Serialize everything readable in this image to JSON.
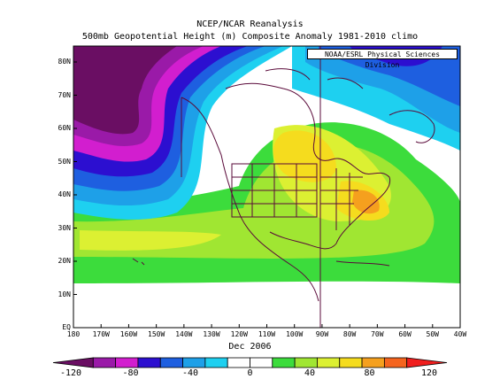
{
  "title": "NCEP/NCAR Reanalysis",
  "subtitle": "500mb Geopotential Height (m) Composite Anomaly 1981-2010 climo",
  "credit": "NOAA/ESRL Physical Sciences Division",
  "date_label": "Dec 2006",
  "x_ticks": [
    "180",
    "170W",
    "160W",
    "150W",
    "140W",
    "130W",
    "120W",
    "110W",
    "100W",
    "90W",
    "80W",
    "70W",
    "60W",
    "50W",
    "40W"
  ],
  "y_ticks": [
    "EQ",
    "10N",
    "20N",
    "30N",
    "40N",
    "50N",
    "60N",
    "70N",
    "80N"
  ],
  "colorbar": {
    "labels": [
      "-120",
      "-80",
      "-40",
      "0",
      "40",
      "80",
      "120"
    ],
    "colors": [
      "#6a0e63",
      "#9a1aa8",
      "#d21ecf",
      "#2c0fd0",
      "#1e5fe0",
      "#1ea0e8",
      "#1ed0f0",
      "#ffffff",
      "#ffffff",
      "#3cdc3c",
      "#a0e632",
      "#dcf032",
      "#f5dc1e",
      "#f5a01e",
      "#f5641e",
      "#f01e1e"
    ]
  }
}
